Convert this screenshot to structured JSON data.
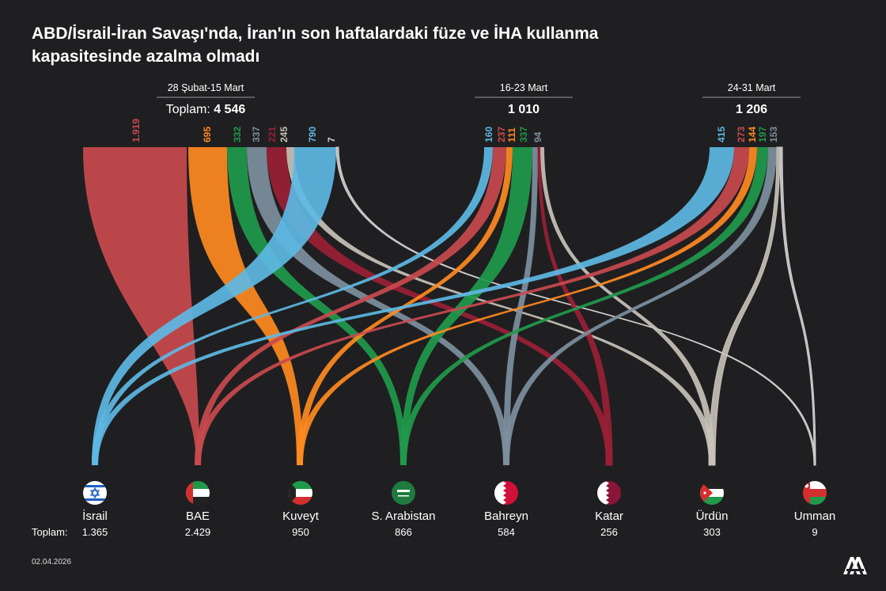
{
  "title": "ABD/İsrail-İran Savaşı'nda, İran'ın son haftalardaki füze ve İHA kullanma kapasitesinde azalma olmadı",
  "footer": {
    "date": "02.04.2026",
    "logo": "AA"
  },
  "totals_label": "Toplam:",
  "colors": {
    "israel": "#5db8e4",
    "uae": "#ff8a1f",
    "kuwait": "#1f9a4b",
    "saudi": "#7d8f9e",
    "bahrain": "#c94a4e",
    "qatar": "#9b1f35",
    "jordan": "#c8c2b8",
    "oman": "#cfcfcf"
  },
  "chart_data": {
    "type": "sankey",
    "periods": [
      {
        "label": "28 Şubat-15 Mart",
        "total_label": "Toplam:",
        "total": "4 546",
        "flows": [
          {
            "dest": "uae",
            "color": "#c94a4e",
            "value": "1.919"
          },
          {
            "dest": "kuwait",
            "color": "#ff8a1f",
            "value": "695"
          },
          {
            "dest": "saudi",
            "color": "#1f9a4b",
            "value": "332"
          },
          {
            "dest": "bahrain",
            "color": "#7d8f9e",
            "value": "337"
          },
          {
            "dest": "qatar",
            "color": "#9b1f35",
            "value": "221"
          },
          {
            "dest": "jordan",
            "color": "#c8c2b8",
            "value": "245"
          },
          {
            "dest": "israel",
            "color": "#5db8e4",
            "value": "790"
          },
          {
            "dest": "oman",
            "color": "#cfcfcf",
            "value": "7"
          }
        ]
      },
      {
        "label": "16-23 Mart",
        "total_label": "",
        "total": "1 010",
        "flows": [
          {
            "dest": "israel",
            "color": "#5db8e4",
            "value": "160"
          },
          {
            "dest": "uae",
            "color": "#c94a4e",
            "value": "237"
          },
          {
            "dest": "kuwait",
            "color": "#ff8a1f",
            "value": "111"
          },
          {
            "dest": "saudi",
            "color": "#1f9a4b",
            "value": "337"
          },
          {
            "dest": "bahrain",
            "color": "#7d8f9e",
            "value": "94"
          },
          {
            "dest": "qatar",
            "color": "#9b1f35",
            "value": ""
          },
          {
            "dest": "jordan",
            "color": "#c8c2b8",
            "value": ""
          }
        ]
      },
      {
        "label": "24-31 Mart",
        "total_label": "",
        "total": "1 206",
        "flows": [
          {
            "dest": "israel",
            "color": "#5db8e4",
            "value": "415"
          },
          {
            "dest": "uae",
            "color": "#c94a4e",
            "value": "273"
          },
          {
            "dest": "kuwait",
            "color": "#ff8a1f",
            "value": "144"
          },
          {
            "dest": "saudi",
            "color": "#1f9a4b",
            "value": "197"
          },
          {
            "dest": "bahrain",
            "color": "#7d8f9e",
            "value": "153"
          },
          {
            "dest": "jordan",
            "color": "#c8c2b8",
            "value": ""
          },
          {
            "dest": "oman",
            "color": "#cfcfcf",
            "value": ""
          }
        ]
      }
    ],
    "destinations": [
      {
        "key": "israel",
        "name": "İsrail",
        "total": "1.365"
      },
      {
        "key": "uae",
        "name": "BAE",
        "total": "2.429"
      },
      {
        "key": "kuwait",
        "name": "Kuveyt",
        "total": "950"
      },
      {
        "key": "saudi",
        "name": "S. Arabistan",
        "total": "866"
      },
      {
        "key": "bahrain",
        "name": "Bahreyn",
        "total": "584"
      },
      {
        "key": "qatar",
        "name": "Katar",
        "total": "256"
      },
      {
        "key": "jordan",
        "name": "Ürdün",
        "total": "303"
      },
      {
        "key": "oman",
        "name": "Umman",
        "total": "9"
      }
    ]
  }
}
